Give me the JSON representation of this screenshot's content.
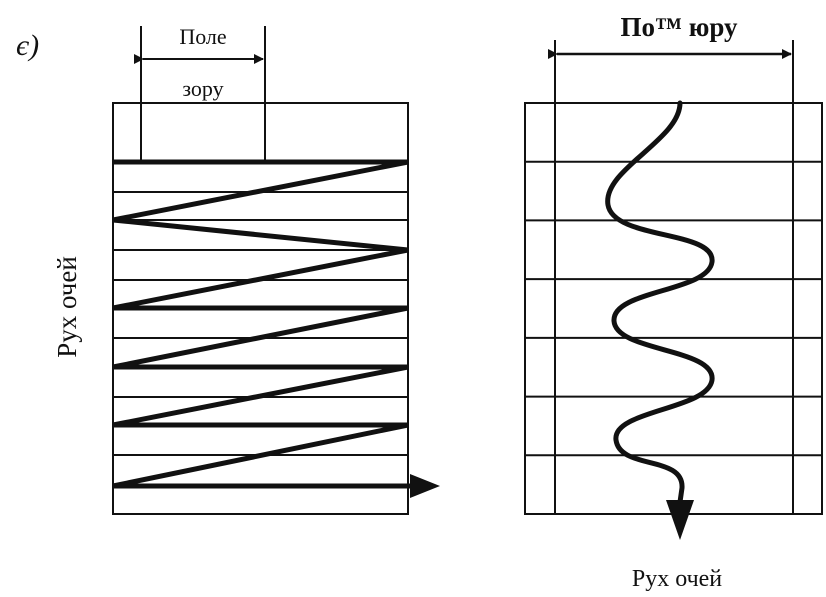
{
  "figure_letter": "є)",
  "left_diagram": {
    "field_label_line1": "Поле",
    "field_label_line2": "зору",
    "vertical_label": "Рух очей",
    "row_count": 12
  },
  "right_diagram": {
    "top_label": "По™ юру",
    "bottom_label": "Рух очей",
    "row_count": 7
  },
  "colors": {
    "stroke": "#111111",
    "background": "#ffffff"
  }
}
